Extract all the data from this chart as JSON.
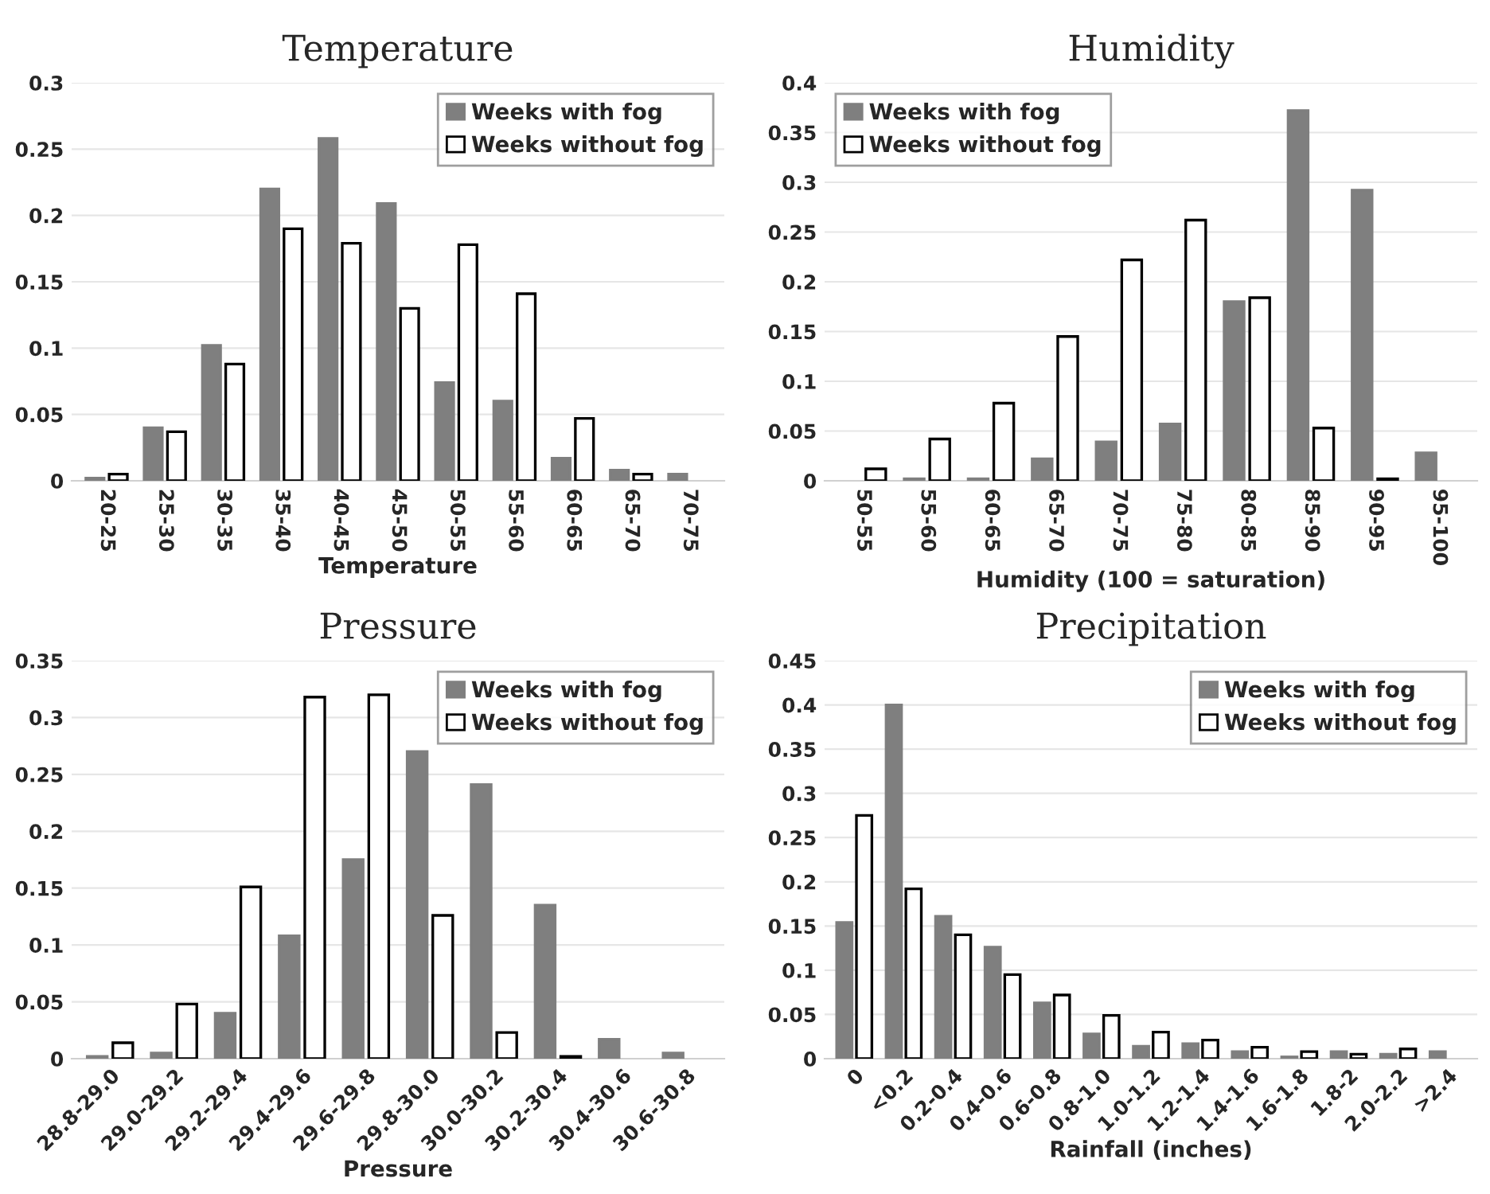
{
  "chart_data": [
    {
      "type": "bar",
      "title": "Temperature",
      "xlabel": "Temperature",
      "categories": [
        "20-25",
        "25-30",
        "30-35",
        "35-40",
        "40-45",
        "45-50",
        "50-55",
        "55-60",
        "60-65",
        "65-70",
        "70-75"
      ],
      "series": [
        {
          "name": "Weeks with fog",
          "color": "#7f7f7f",
          "values": [
            0.002,
            0.04,
            0.102,
            0.22,
            0.258,
            0.209,
            0.074,
            0.06,
            0.017,
            0.008,
            0.005
          ]
        },
        {
          "name": "Weeks without fog",
          "color": "#ffffff",
          "values": [
            0.005,
            0.037,
            0.088,
            0.19,
            0.179,
            0.13,
            0.178,
            0.141,
            0.047,
            0.005,
            null
          ]
        }
      ],
      "ylim": [
        0,
        0.3
      ],
      "yticks": [
        0,
        0.05,
        0.1,
        0.15,
        0.2,
        0.25,
        0.3
      ],
      "grid": "y",
      "legend": "top right"
    },
    {
      "type": "bar",
      "title": "Humidity",
      "xlabel": "Humidity (100 = saturation)",
      "categories": [
        "50-55",
        "55-60",
        "60-65",
        "65-70",
        "70-75",
        "75-80",
        "80-85",
        "85-90",
        "90-95",
        "95-100"
      ],
      "series": [
        {
          "name": "Weeks with fog",
          "color": "#7f7f7f",
          "values": [
            null,
            0.002,
            0.002,
            0.022,
            0.039,
            0.057,
            0.18,
            0.372,
            0.292,
            0.028
          ]
        },
        {
          "name": "Weeks without fog",
          "color": "#ffffff",
          "values": [
            0.012,
            0.042,
            0.078,
            0.145,
            0.222,
            0.262,
            0.184,
            0.053,
            0.002,
            null
          ]
        }
      ],
      "ylim": [
        0,
        0.4
      ],
      "yticks": [
        0,
        0.05,
        0.1,
        0.15,
        0.2,
        0.25,
        0.3,
        0.35,
        0.4
      ],
      "grid": "y",
      "legend": "top left"
    },
    {
      "type": "bar",
      "title": "Pressure",
      "xlabel": "Pressure",
      "categories": [
        "28.8-29.0",
        "29.0-29.2",
        "29.2-29.4",
        "29.4-29.6",
        "29.6-29.8",
        "29.8-30.0",
        "30.0-30.2",
        "30.2-30.4",
        "30.4-30.6",
        "30.6-30.8"
      ],
      "series": [
        {
          "name": "Weeks with fog",
          "color": "#7f7f7f",
          "values": [
            0.002,
            0.005,
            0.04,
            0.108,
            0.175,
            0.27,
            0.241,
            0.135,
            0.017,
            0.005
          ]
        },
        {
          "name": "Weeks without fog",
          "color": "#ffffff",
          "values": [
            0.014,
            0.048,
            0.151,
            0.318,
            0.32,
            0.126,
            0.023,
            0.002,
            null,
            null
          ]
        }
      ],
      "ylim": [
        0,
        0.35
      ],
      "yticks": [
        0,
        0.05,
        0.1,
        0.15,
        0.2,
        0.25,
        0.3,
        0.35
      ],
      "grid": "y",
      "legend": "top right"
    },
    {
      "type": "bar",
      "title": "Precipitation",
      "xlabel": "Rainfall (inches)",
      "categories": [
        "0",
        "<0.2",
        "0.2-0.4",
        "0.4-0.6",
        "0.6-0.8",
        "0.8-1.0",
        "1.0-1.2",
        "1.2-1.4",
        "1.4-1.6",
        "1.6-1.8",
        "1.8-2",
        "2.0-2.2",
        ">2.4"
      ],
      "series": [
        {
          "name": "Weeks with fog",
          "color": "#7f7f7f",
          "values": [
            0.154,
            0.4,
            0.161,
            0.126,
            0.063,
            0.028,
            0.014,
            0.017,
            0.008,
            0.002,
            0.008,
            0.005,
            0.008
          ]
        },
        {
          "name": "Weeks without fog",
          "color": "#ffffff",
          "values": [
            0.275,
            0.192,
            0.14,
            0.095,
            0.072,
            0.049,
            0.03,
            0.021,
            0.013,
            0.008,
            0.005,
            0.011,
            null
          ]
        }
      ],
      "ylim": [
        0,
        0.45
      ],
      "yticks": [
        0,
        0.05,
        0.1,
        0.15,
        0.2,
        0.25,
        0.3,
        0.35,
        0.4,
        0.45
      ],
      "grid": "y",
      "legend": "top right"
    }
  ]
}
